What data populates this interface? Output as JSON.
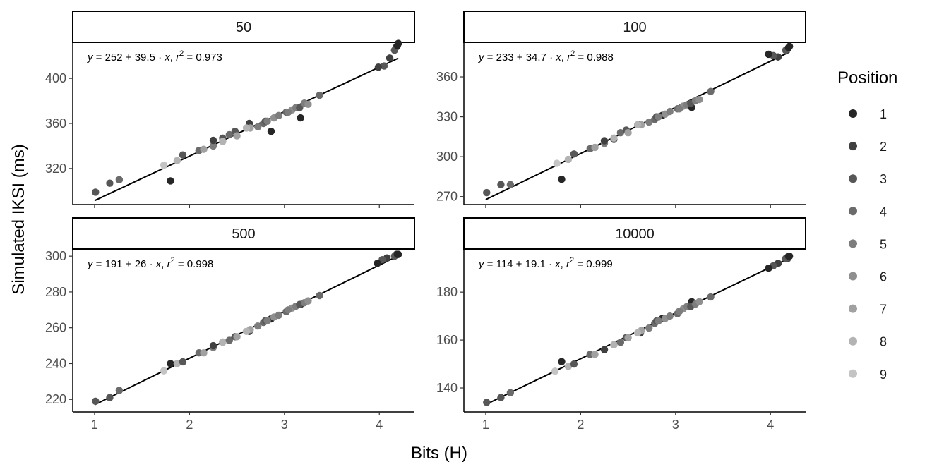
{
  "chart_data": {
    "type": "scatter",
    "xlabel": "Bits (H)",
    "ylabel": "Simulated IKSI (ms)",
    "legend": {
      "title": "Position",
      "placement": "right",
      "entries": [
        "1",
        "2",
        "3",
        "4",
        "5",
        "6",
        "7",
        "8",
        "9"
      ],
      "colors": [
        "#262626",
        "#404040",
        "#575757",
        "#6b6b6b",
        "#7d7d7d",
        "#8f8f8f",
        "#a1a1a1",
        "#b3b3b3",
        "#c4c4c4"
      ]
    },
    "xlim": [
      0.77,
      4.37
    ],
    "x_ticks": [
      1,
      2,
      3,
      4
    ],
    "panels": [
      {
        "strip": "50",
        "equation": {
          "intercept": "252",
          "slope": "39.5",
          "r2": "0.973"
        },
        "ylim": [
          288,
          432
        ],
        "y_ticks": [
          320,
          360,
          400
        ],
        "fit": {
          "intercept": 252,
          "slope": 39.5
        },
        "points": [
          [
            4.2,
            431,
            1
          ],
          [
            4.18,
            428,
            2
          ],
          [
            4.16,
            425,
            3
          ],
          [
            4.19,
            429,
            1
          ],
          [
            4.11,
            418,
            2
          ],
          [
            4.05,
            411,
            3
          ],
          [
            3.99,
            410,
            2
          ],
          [
            1.01,
            299,
            3
          ],
          [
            1.16,
            307,
            3
          ],
          [
            1.26,
            310,
            4
          ],
          [
            1.8,
            309,
            1
          ],
          [
            1.73,
            323,
            9
          ],
          [
            1.87,
            327,
            8
          ],
          [
            1.93,
            332,
            3
          ],
          [
            2.1,
            336,
            4
          ],
          [
            2.15,
            337,
            7
          ],
          [
            2.25,
            340,
            5
          ],
          [
            2.25,
            345,
            2
          ],
          [
            2.35,
            347,
            3
          ],
          [
            2.35,
            344,
            8
          ],
          [
            2.42,
            350,
            4
          ],
          [
            2.48,
            353,
            3
          ],
          [
            2.5,
            349,
            7
          ],
          [
            2.63,
            360,
            2
          ],
          [
            2.64,
            356,
            7
          ],
          [
            2.72,
            357,
            5
          ],
          [
            2.78,
            360,
            4
          ],
          [
            2.8,
            362,
            3
          ],
          [
            2.86,
            353,
            1
          ],
          [
            2.89,
            365,
            6
          ],
          [
            2.94,
            367,
            5
          ],
          [
            3.02,
            370,
            4
          ],
          [
            3.08,
            372,
            6
          ],
          [
            3.12,
            374,
            5
          ],
          [
            3.17,
            365,
            1
          ],
          [
            3.16,
            374,
            3
          ],
          [
            3.21,
            378,
            5
          ],
          [
            3.25,
            377,
            6
          ],
          [
            3.37,
            385,
            4
          ],
          [
            2.82,
            362,
            5
          ],
          [
            3.04,
            370,
            5
          ],
          [
            2.6,
            356,
            8
          ]
        ]
      },
      {
        "strip": "100",
        "equation": {
          "intercept": "233",
          "slope": "34.7",
          "r2": "0.988"
        },
        "ylim": [
          264,
          386
        ],
        "y_ticks": [
          270,
          300,
          330,
          360
        ],
        "fit": {
          "intercept": 233,
          "slope": 34.7
        },
        "points": [
          [
            4.2,
            383,
            1
          ],
          [
            4.18,
            381,
            2
          ],
          [
            4.16,
            380,
            3
          ],
          [
            4.19,
            382,
            1
          ],
          [
            4.08,
            375,
            2
          ],
          [
            4.03,
            376,
            3
          ],
          [
            3.98,
            377,
            1
          ],
          [
            1.01,
            273,
            3
          ],
          [
            1.16,
            279,
            3
          ],
          [
            1.26,
            279,
            4
          ],
          [
            1.8,
            283,
            1
          ],
          [
            1.75,
            295,
            9
          ],
          [
            1.87,
            298,
            8
          ],
          [
            1.93,
            302,
            3
          ],
          [
            2.1,
            306,
            4
          ],
          [
            2.15,
            307,
            7
          ],
          [
            2.25,
            310,
            5
          ],
          [
            2.25,
            312,
            2
          ],
          [
            2.35,
            313,
            3
          ],
          [
            2.35,
            314,
            8
          ],
          [
            2.42,
            318,
            4
          ],
          [
            2.48,
            320,
            3
          ],
          [
            2.5,
            318,
            7
          ],
          [
            2.63,
            324,
            2
          ],
          [
            2.64,
            324,
            7
          ],
          [
            2.72,
            326,
            5
          ],
          [
            2.78,
            328,
            4
          ],
          [
            2.8,
            330,
            3
          ],
          [
            2.86,
            331,
            1
          ],
          [
            2.89,
            332,
            6
          ],
          [
            2.94,
            334,
            5
          ],
          [
            3.02,
            336,
            4
          ],
          [
            3.08,
            338,
            6
          ],
          [
            3.12,
            339,
            5
          ],
          [
            3.17,
            337,
            1
          ],
          [
            3.16,
            340,
            3
          ],
          [
            3.21,
            342,
            5
          ],
          [
            3.25,
            343,
            6
          ],
          [
            3.37,
            349,
            4
          ],
          [
            2.82,
            330,
            5
          ],
          [
            3.04,
            336,
            5
          ],
          [
            2.6,
            324,
            8
          ]
        ]
      },
      {
        "strip": "500",
        "equation": {
          "intercept": "191",
          "slope": "26",
          "r2": "0.998"
        },
        "ylim": [
          213,
          304
        ],
        "y_ticks": [
          220,
          240,
          260,
          280,
          300
        ],
        "fit": {
          "intercept": 191,
          "slope": 26
        },
        "points": [
          [
            4.2,
            301,
            1
          ],
          [
            4.18,
            301,
            2
          ],
          [
            4.16,
            300,
            3
          ],
          [
            4.19,
            301,
            1
          ],
          [
            4.08,
            299,
            2
          ],
          [
            4.03,
            298,
            3
          ],
          [
            3.98,
            296,
            1
          ],
          [
            1.01,
            219,
            3
          ],
          [
            1.16,
            221,
            3
          ],
          [
            1.26,
            225,
            4
          ],
          [
            1.8,
            240,
            1
          ],
          [
            1.73,
            236,
            9
          ],
          [
            1.87,
            240,
            8
          ],
          [
            1.93,
            241,
            3
          ],
          [
            2.1,
            246,
            4
          ],
          [
            2.15,
            246,
            7
          ],
          [
            2.25,
            249,
            5
          ],
          [
            2.25,
            250,
            2
          ],
          [
            2.35,
            252,
            3
          ],
          [
            2.35,
            252,
            8
          ],
          [
            2.42,
            253,
            4
          ],
          [
            2.48,
            255,
            3
          ],
          [
            2.5,
            255,
            7
          ],
          [
            2.63,
            258,
            2
          ],
          [
            2.64,
            259,
            7
          ],
          [
            2.72,
            261,
            5
          ],
          [
            2.78,
            263,
            4
          ],
          [
            2.8,
            264,
            3
          ],
          [
            2.86,
            265,
            1
          ],
          [
            2.89,
            266,
            6
          ],
          [
            2.94,
            267,
            5
          ],
          [
            3.02,
            269,
            4
          ],
          [
            3.08,
            271,
            6
          ],
          [
            3.12,
            272,
            5
          ],
          [
            3.17,
            273,
            1
          ],
          [
            3.16,
            273,
            3
          ],
          [
            3.21,
            274,
            5
          ],
          [
            3.25,
            275,
            6
          ],
          [
            3.37,
            278,
            4
          ],
          [
            2.82,
            264,
            5
          ],
          [
            3.04,
            270,
            5
          ],
          [
            2.6,
            258,
            8
          ]
        ]
      },
      {
        "strip": "10000",
        "equation": {
          "intercept": "114",
          "slope": "19.1",
          "r2": "0.999"
        },
        "ylim": [
          130,
          198
        ],
        "y_ticks": [
          140,
          160,
          180
        ],
        "fit": {
          "intercept": 114,
          "slope": 19.1
        },
        "points": [
          [
            4.2,
            195,
            1
          ],
          [
            4.18,
            194,
            2
          ],
          [
            4.16,
            194,
            3
          ],
          [
            4.19,
            195,
            1
          ],
          [
            4.08,
            192,
            2
          ],
          [
            4.03,
            191,
            3
          ],
          [
            3.98,
            190,
            1
          ],
          [
            1.01,
            134,
            3
          ],
          [
            1.16,
            136,
            3
          ],
          [
            1.26,
            138,
            4
          ],
          [
            1.8,
            151,
            1
          ],
          [
            1.73,
            147,
            9
          ],
          [
            1.87,
            149,
            8
          ],
          [
            1.93,
            150,
            3
          ],
          [
            2.1,
            154,
            4
          ],
          [
            2.15,
            154,
            7
          ],
          [
            2.25,
            156,
            5
          ],
          [
            2.25,
            156,
            2
          ],
          [
            2.35,
            158,
            3
          ],
          [
            2.35,
            158,
            8
          ],
          [
            2.42,
            159,
            4
          ],
          [
            2.48,
            161,
            3
          ],
          [
            2.5,
            161,
            7
          ],
          [
            2.63,
            163,
            2
          ],
          [
            2.64,
            164,
            7
          ],
          [
            2.72,
            165,
            5
          ],
          [
            2.78,
            167,
            4
          ],
          [
            2.8,
            168,
            3
          ],
          [
            2.86,
            169,
            1
          ],
          [
            2.89,
            169,
            6
          ],
          [
            2.94,
            170,
            5
          ],
          [
            3.02,
            171,
            4
          ],
          [
            3.08,
            173,
            6
          ],
          [
            3.12,
            174,
            5
          ],
          [
            3.17,
            176,
            1
          ],
          [
            3.16,
            174,
            3
          ],
          [
            3.21,
            175,
            5
          ],
          [
            3.25,
            176,
            6
          ],
          [
            3.37,
            178,
            4
          ],
          [
            2.82,
            168,
            5
          ],
          [
            3.04,
            172,
            5
          ],
          [
            2.6,
            163,
            8
          ]
        ]
      }
    ]
  }
}
